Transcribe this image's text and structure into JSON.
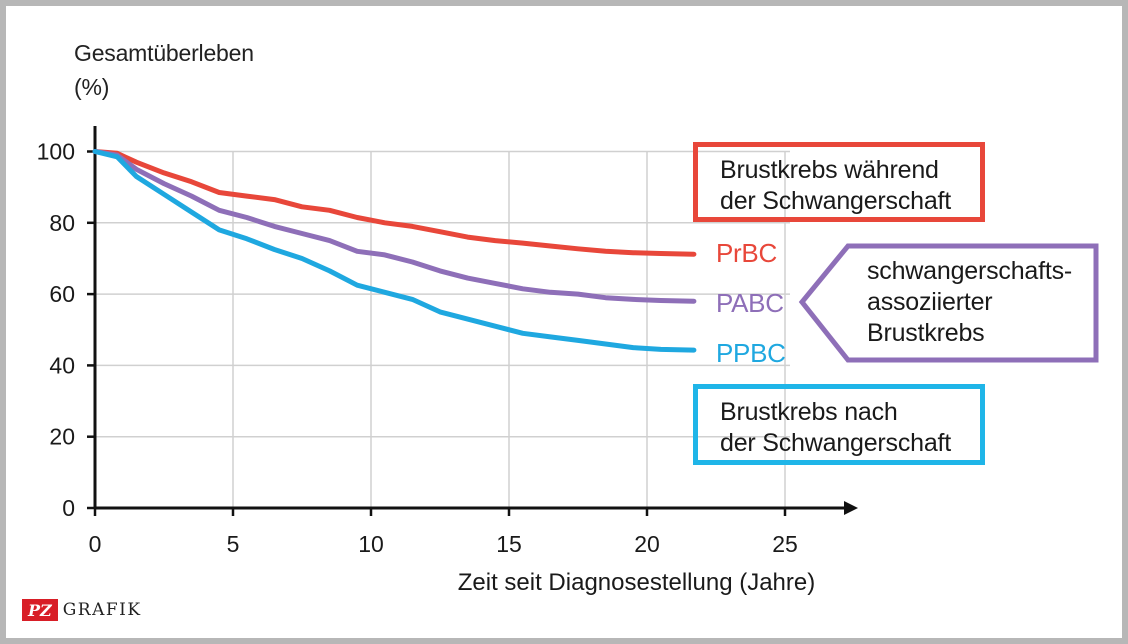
{
  "chart_data": {
    "type": "line",
    "ylabel_lines": [
      "Gesamtüberleben",
      "(%)"
    ],
    "xlabel": "Zeit seit Diagnosestellung (Jahre)",
    "xlim": [
      0,
      27
    ],
    "ylim": [
      0,
      105
    ],
    "xticks": [
      0,
      5,
      10,
      15,
      20,
      25
    ],
    "yticks": [
      0,
      20,
      40,
      60,
      80,
      100
    ],
    "grid": "vertical at x ticks, horizontal at y ticks",
    "series": [
      {
        "name": "PrBC",
        "color": "#e8473a",
        "x": [
          0,
          0.8,
          1.5,
          2.5,
          3.5,
          4.5,
          5.5,
          6.5,
          7.5,
          8.5,
          9.5,
          10.5,
          11.5,
          12.5,
          13.5,
          14.5,
          15.5,
          16.5,
          17.5,
          18.5,
          19.5,
          20.5,
          21.7
        ],
        "y": [
          100,
          99.5,
          97,
          94,
          91.5,
          88.5,
          87.5,
          86.5,
          84.5,
          83.5,
          81.5,
          80,
          79,
          77.5,
          76,
          75,
          74.3,
          73.5,
          72.7,
          72,
          71.6,
          71.4,
          71.2
        ]
      },
      {
        "name": "PABC",
        "color": "#8e6fb8",
        "x": [
          0,
          0.8,
          1.5,
          2.5,
          3.5,
          4.5,
          5.5,
          6.5,
          7.5,
          8.5,
          9.5,
          10.5,
          11.5,
          12.5,
          13.5,
          14.5,
          15.5,
          16.5,
          17.5,
          18.5,
          19.5,
          20.5,
          21.7
        ],
        "y": [
          100,
          99,
          95,
          91,
          87.5,
          83.5,
          81.5,
          79,
          77,
          75,
          72,
          71,
          69,
          66.5,
          64.5,
          63,
          61.5,
          60.5,
          60,
          59,
          58.5,
          58.2,
          58
        ]
      },
      {
        "name": "PPBC",
        "color": "#1fa8e0",
        "x": [
          0,
          0.8,
          1.5,
          2.5,
          3.5,
          4.5,
          5.5,
          6.5,
          7.5,
          8.5,
          9.5,
          10.5,
          11.5,
          12.5,
          13.5,
          14.5,
          15.5,
          16.5,
          17.5,
          18.5,
          19.5,
          20.5,
          21.7
        ],
        "y": [
          100,
          98.5,
          93,
          88,
          83,
          78,
          75.5,
          72.5,
          70,
          66.5,
          62.5,
          60.5,
          58.5,
          55,
          53,
          51,
          49,
          48,
          47,
          46,
          45,
          44.5,
          44.3
        ]
      }
    ],
    "annotations": [
      {
        "series": "PrBC",
        "lines": [
          "Brustkrebs während",
          "der Schwangerschaft"
        ]
      },
      {
        "series": "PABC",
        "lines": [
          "schwangerschafts-",
          "assoziierter",
          "Brustkrebs"
        ]
      },
      {
        "series": "PPBC",
        "lines": [
          "Brustkrebs nach",
          "der Schwangerschaft"
        ]
      }
    ]
  },
  "logo": {
    "mark": "PZ",
    "word": "GRAFIK"
  }
}
